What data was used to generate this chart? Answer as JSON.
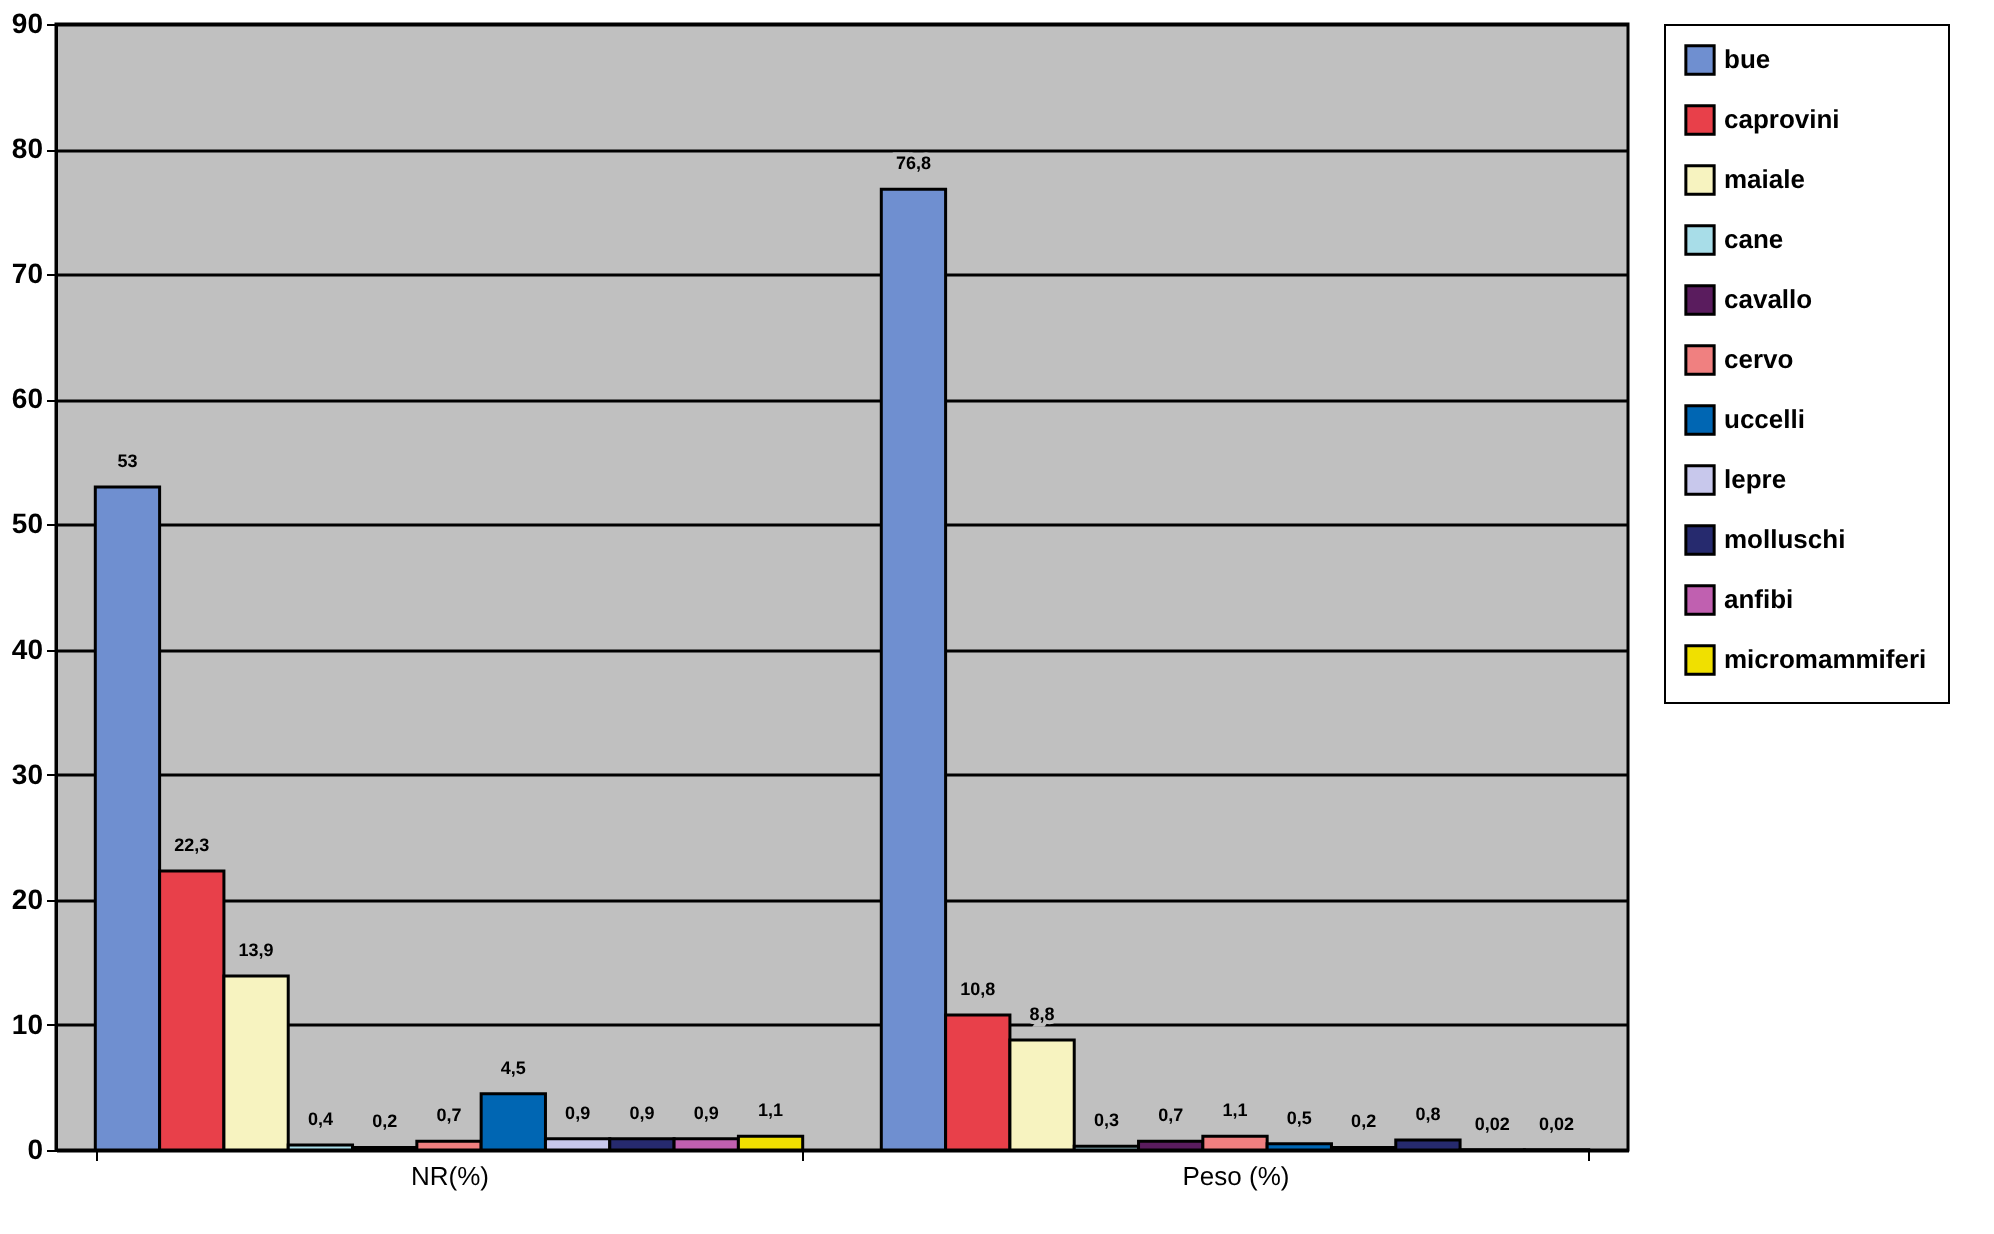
{
  "chart_data": {
    "type": "bar",
    "categories": [
      "NR(%)",
      "Peso (%)"
    ],
    "series": [
      {
        "name": "bue",
        "color": "#6f8fd0",
        "values": [
          53,
          76.8
        ],
        "value_labels": [
          "53",
          "76,8"
        ]
      },
      {
        "name": "caprovini",
        "color": "#e8404a",
        "values": [
          22.3,
          10.8
        ],
        "value_labels": [
          "22,3",
          "10,8"
        ]
      },
      {
        "name": "maiale",
        "color": "#f7f3c0",
        "values": [
          13.9,
          8.8
        ],
        "value_labels": [
          "13,9",
          "8,8"
        ]
      },
      {
        "name": "cane",
        "color": "#a8dde8",
        "values": [
          0.4,
          0.3
        ],
        "value_labels": [
          "0,4",
          "0,3"
        ]
      },
      {
        "name": "cavallo",
        "color": "#5a1c5e",
        "values": [
          0.2,
          0.7
        ],
        "value_labels": [
          "0,2",
          "0,7"
        ]
      },
      {
        "name": "cervo",
        "color": "#f08080",
        "values": [
          0.7,
          1.1
        ],
        "value_labels": [
          "0,7",
          "1,1"
        ]
      },
      {
        "name": "uccelli",
        "color": "#0066b3",
        "values": [
          4.5,
          0.5
        ],
        "value_labels": [
          "4,5",
          "0,5"
        ]
      },
      {
        "name": "lepre",
        "color": "#c8c8ec",
        "values": [
          0.9,
          0.2
        ],
        "value_labels": [
          "0,9",
          "0,2"
        ]
      },
      {
        "name": "molluschi",
        "color": "#262a6e",
        "values": [
          0.9,
          0.8
        ],
        "value_labels": [
          "0,9",
          "0,8"
        ]
      },
      {
        "name": "anfibi",
        "color": "#c060b0",
        "values": [
          0.9,
          0.02
        ],
        "value_labels": [
          "0,9",
          "0,02"
        ]
      },
      {
        "name": "micromammiferi",
        "color": "#f0e000",
        "values": [
          1.1,
          0.02
        ],
        "value_labels": [
          "1,1",
          "0,02"
        ]
      }
    ],
    "ylim": [
      0,
      90
    ],
    "yticks": [
      0,
      10,
      20,
      30,
      40,
      50,
      60,
      70,
      80,
      90
    ],
    "grid": "y",
    "legend": "right"
  }
}
